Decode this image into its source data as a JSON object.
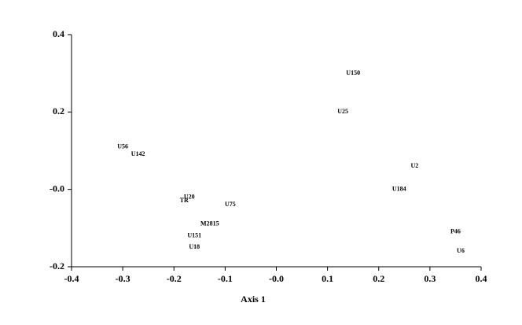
{
  "chart_data": {
    "type": "scatter",
    "x_label": "Axis 1",
    "point_labels": [
      "U150",
      "U25",
      "U56",
      "U142",
      "U2",
      "U184",
      "U20",
      "TR",
      "U75",
      "M2815",
      "U151",
      "U18",
      "P46",
      "U6"
    ],
    "x": [
      0.15,
      0.13,
      -0.3,
      -0.27,
      0.27,
      0.24,
      -0.17,
      -0.18,
      -0.09,
      -0.13,
      -0.16,
      -0.16,
      0.35,
      0.36
    ],
    "values": [
      0.3,
      0.2,
      0.11,
      0.09,
      0.06,
      0.0,
      -0.02,
      -0.03,
      -0.04,
      -0.09,
      -0.12,
      -0.15,
      -0.11,
      -0.16
    ],
    "xlim": [
      -0.4,
      0.4
    ],
    "ylim": [
      -0.2,
      0.4
    ],
    "xticks": [
      -0.4,
      -0.3,
      -0.2,
      -0.1,
      {
        "value": 0,
        "label": "-0.0"
      },
      0.1,
      0.2,
      0.3,
      0.4
    ],
    "yticks": [
      -0.2,
      {
        "value": 0,
        "label": "-0.0"
      },
      0.2,
      0.4
    ]
  }
}
